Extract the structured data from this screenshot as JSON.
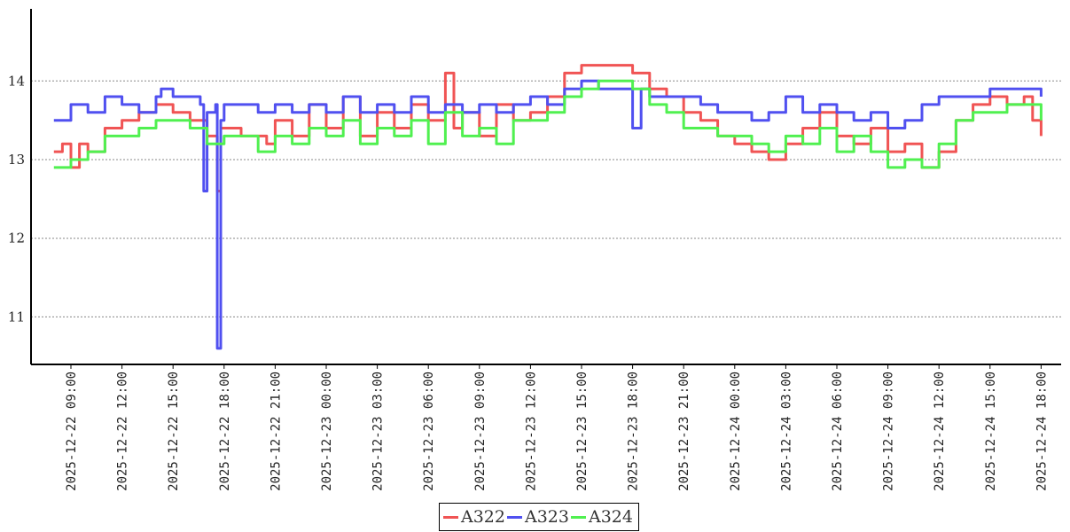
{
  "chart_data": {
    "type": "line",
    "title": "",
    "xlabel": "",
    "ylabel": "",
    "x_unit": "hours since 2025-12-22 00:00",
    "xlim": [
      6.7,
      67.2
    ],
    "ylim": [
      10.4,
      14.9
    ],
    "yticks": [
      11,
      12,
      13,
      14
    ],
    "grid": "horizontal dashed",
    "legend_position": "bottom-center",
    "xticks": [
      {
        "x": 9,
        "label": "2025-12-22 09:00"
      },
      {
        "x": 12,
        "label": "2025-12-22 12:00"
      },
      {
        "x": 15,
        "label": "2025-12-22 15:00"
      },
      {
        "x": 18,
        "label": "2025-12-22 18:00"
      },
      {
        "x": 21,
        "label": "2025-12-22 21:00"
      },
      {
        "x": 24,
        "label": "2025-12-23 00:00"
      },
      {
        "x": 27,
        "label": "2025-12-23 03:00"
      },
      {
        "x": 30,
        "label": "2025-12-23 06:00"
      },
      {
        "x": 33,
        "label": "2025-12-23 09:00"
      },
      {
        "x": 36,
        "label": "2025-12-23 12:00"
      },
      {
        "x": 39,
        "label": "2025-12-23 15:00"
      },
      {
        "x": 42,
        "label": "2025-12-23 18:00"
      },
      {
        "x": 45,
        "label": "2025-12-23 21:00"
      },
      {
        "x": 48,
        "label": "2025-12-24 00:00"
      },
      {
        "x": 51,
        "label": "2025-12-24 03:00"
      },
      {
        "x": 54,
        "label": "2025-12-24 06:00"
      },
      {
        "x": 57,
        "label": "2025-12-24 09:00"
      },
      {
        "x": 60,
        "label": "2025-12-24 12:00"
      },
      {
        "x": 63,
        "label": "2025-12-24 15:00"
      },
      {
        "x": 66,
        "label": "2025-12-24 18:00"
      }
    ],
    "series": [
      {
        "name": "A322",
        "color": "#f05454",
        "points": [
          [
            8,
            13.1
          ],
          [
            8.5,
            13.2
          ],
          [
            9,
            12.9
          ],
          [
            9.5,
            13.2
          ],
          [
            10,
            13.1
          ],
          [
            11,
            13.4
          ],
          [
            12,
            13.5
          ],
          [
            13,
            13.6
          ],
          [
            14,
            13.7
          ],
          [
            15,
            13.6
          ],
          [
            16,
            13.5
          ],
          [
            17,
            13.3
          ],
          [
            17.5,
            13.3
          ],
          [
            17.6,
            12.6
          ],
          [
            17.8,
            13.4
          ],
          [
            18,
            13.4
          ],
          [
            19,
            13.3
          ],
          [
            20,
            13.3
          ],
          [
            20.5,
            13.2
          ],
          [
            21,
            13.5
          ],
          [
            22,
            13.3
          ],
          [
            23,
            13.7
          ],
          [
            24,
            13.4
          ],
          [
            25,
            13.8
          ],
          [
            26,
            13.3
          ],
          [
            27,
            13.6
          ],
          [
            28,
            13.4
          ],
          [
            29,
            13.7
          ],
          [
            30,
            13.5
          ],
          [
            31,
            14.1
          ],
          [
            31.5,
            13.4
          ],
          [
            32,
            13.6
          ],
          [
            33,
            13.3
          ],
          [
            34,
            13.7
          ],
          [
            35,
            13.5
          ],
          [
            36,
            13.6
          ],
          [
            37,
            13.8
          ],
          [
            38,
            14.1
          ],
          [
            39,
            14.2
          ],
          [
            40,
            14.2
          ],
          [
            41,
            14.2
          ],
          [
            42,
            14.1
          ],
          [
            43,
            13.9
          ],
          [
            44,
            13.8
          ],
          [
            45,
            13.6
          ],
          [
            46,
            13.5
          ],
          [
            47,
            13.3
          ],
          [
            48,
            13.2
          ],
          [
            49,
            13.1
          ],
          [
            50,
            13.0
          ],
          [
            51,
            13.2
          ],
          [
            52,
            13.4
          ],
          [
            53,
            13.6
          ],
          [
            54,
            13.3
          ],
          [
            55,
            13.2
          ],
          [
            56,
            13.4
          ],
          [
            57,
            13.1
          ],
          [
            58,
            13.2
          ],
          [
            59,
            12.9
          ],
          [
            60,
            13.1
          ],
          [
            61,
            13.5
          ],
          [
            62,
            13.7
          ],
          [
            63,
            13.8
          ],
          [
            64,
            13.7
          ],
          [
            65,
            13.8
          ],
          [
            65.5,
            13.5
          ],
          [
            66,
            13.3
          ]
        ]
      },
      {
        "name": "A323",
        "color": "#5050f0",
        "points": [
          [
            8,
            13.5
          ],
          [
            9,
            13.7
          ],
          [
            10,
            13.6
          ],
          [
            11,
            13.8
          ],
          [
            12,
            13.7
          ],
          [
            13,
            13.6
          ],
          [
            14,
            13.8
          ],
          [
            14.3,
            13.9
          ],
          [
            15,
            13.8
          ],
          [
            16,
            13.8
          ],
          [
            16.6,
            13.7
          ],
          [
            16.8,
            12.6
          ],
          [
            17,
            13.6
          ],
          [
            17.5,
            13.7
          ],
          [
            17.6,
            10.6
          ],
          [
            17.8,
            13.5
          ],
          [
            18,
            13.7
          ],
          [
            19,
            13.7
          ],
          [
            20,
            13.6
          ],
          [
            21,
            13.7
          ],
          [
            22,
            13.6
          ],
          [
            23,
            13.7
          ],
          [
            24,
            13.6
          ],
          [
            25,
            13.8
          ],
          [
            26,
            13.6
          ],
          [
            27,
            13.7
          ],
          [
            28,
            13.6
          ],
          [
            29,
            13.8
          ],
          [
            30,
            13.6
          ],
          [
            31,
            13.7
          ],
          [
            32,
            13.6
          ],
          [
            33,
            13.7
          ],
          [
            34,
            13.6
          ],
          [
            35,
            13.7
          ],
          [
            36,
            13.8
          ],
          [
            37,
            13.7
          ],
          [
            38,
            13.9
          ],
          [
            39,
            14.0
          ],
          [
            40,
            13.9
          ],
          [
            41,
            13.9
          ],
          [
            42,
            13.4
          ],
          [
            42.5,
            13.9
          ],
          [
            43,
            13.8
          ],
          [
            44,
            13.8
          ],
          [
            45,
            13.8
          ],
          [
            46,
            13.7
          ],
          [
            47,
            13.6
          ],
          [
            48,
            13.6
          ],
          [
            49,
            13.5
          ],
          [
            50,
            13.6
          ],
          [
            51,
            13.8
          ],
          [
            52,
            13.6
          ],
          [
            53,
            13.7
          ],
          [
            54,
            13.6
          ],
          [
            55,
            13.5
          ],
          [
            56,
            13.6
          ],
          [
            57,
            13.4
          ],
          [
            58,
            13.5
          ],
          [
            59,
            13.7
          ],
          [
            60,
            13.8
          ],
          [
            61,
            13.8
          ],
          [
            62,
            13.8
          ],
          [
            63,
            13.9
          ],
          [
            64,
            13.9
          ],
          [
            65,
            13.9
          ],
          [
            66,
            13.8
          ]
        ]
      },
      {
        "name": "A324",
        "color": "#50f050",
        "points": [
          [
            8,
            12.9
          ],
          [
            9,
            13.0
          ],
          [
            10,
            13.1
          ],
          [
            11,
            13.3
          ],
          [
            12,
            13.3
          ],
          [
            13,
            13.4
          ],
          [
            14,
            13.5
          ],
          [
            15,
            13.5
          ],
          [
            16,
            13.4
          ],
          [
            17,
            13.2
          ],
          [
            18,
            13.3
          ],
          [
            19,
            13.3
          ],
          [
            20,
            13.1
          ],
          [
            21,
            13.3
          ],
          [
            22,
            13.2
          ],
          [
            23,
            13.4
          ],
          [
            24,
            13.3
          ],
          [
            25,
            13.5
          ],
          [
            26,
            13.2
          ],
          [
            27,
            13.4
          ],
          [
            28,
            13.3
          ],
          [
            29,
            13.5
          ],
          [
            30,
            13.2
          ],
          [
            31,
            13.6
          ],
          [
            32,
            13.3
          ],
          [
            33,
            13.4
          ],
          [
            34,
            13.2
          ],
          [
            35,
            13.5
          ],
          [
            36,
            13.5
          ],
          [
            37,
            13.6
          ],
          [
            38,
            13.8
          ],
          [
            39,
            13.9
          ],
          [
            40,
            14.0
          ],
          [
            41,
            14.0
          ],
          [
            42,
            13.9
          ],
          [
            43,
            13.7
          ],
          [
            44,
            13.6
          ],
          [
            45,
            13.4
          ],
          [
            46,
            13.4
          ],
          [
            47,
            13.3
          ],
          [
            48,
            13.3
          ],
          [
            49,
            13.2
          ],
          [
            50,
            13.1
          ],
          [
            51,
            13.3
          ],
          [
            52,
            13.2
          ],
          [
            53,
            13.4
          ],
          [
            54,
            13.1
          ],
          [
            55,
            13.3
          ],
          [
            56,
            13.1
          ],
          [
            57,
            12.9
          ],
          [
            58,
            13.0
          ],
          [
            59,
            12.9
          ],
          [
            60,
            13.2
          ],
          [
            61,
            13.5
          ],
          [
            62,
            13.6
          ],
          [
            63,
            13.6
          ],
          [
            64,
            13.7
          ],
          [
            65,
            13.7
          ],
          [
            66,
            13.5
          ]
        ]
      }
    ]
  }
}
